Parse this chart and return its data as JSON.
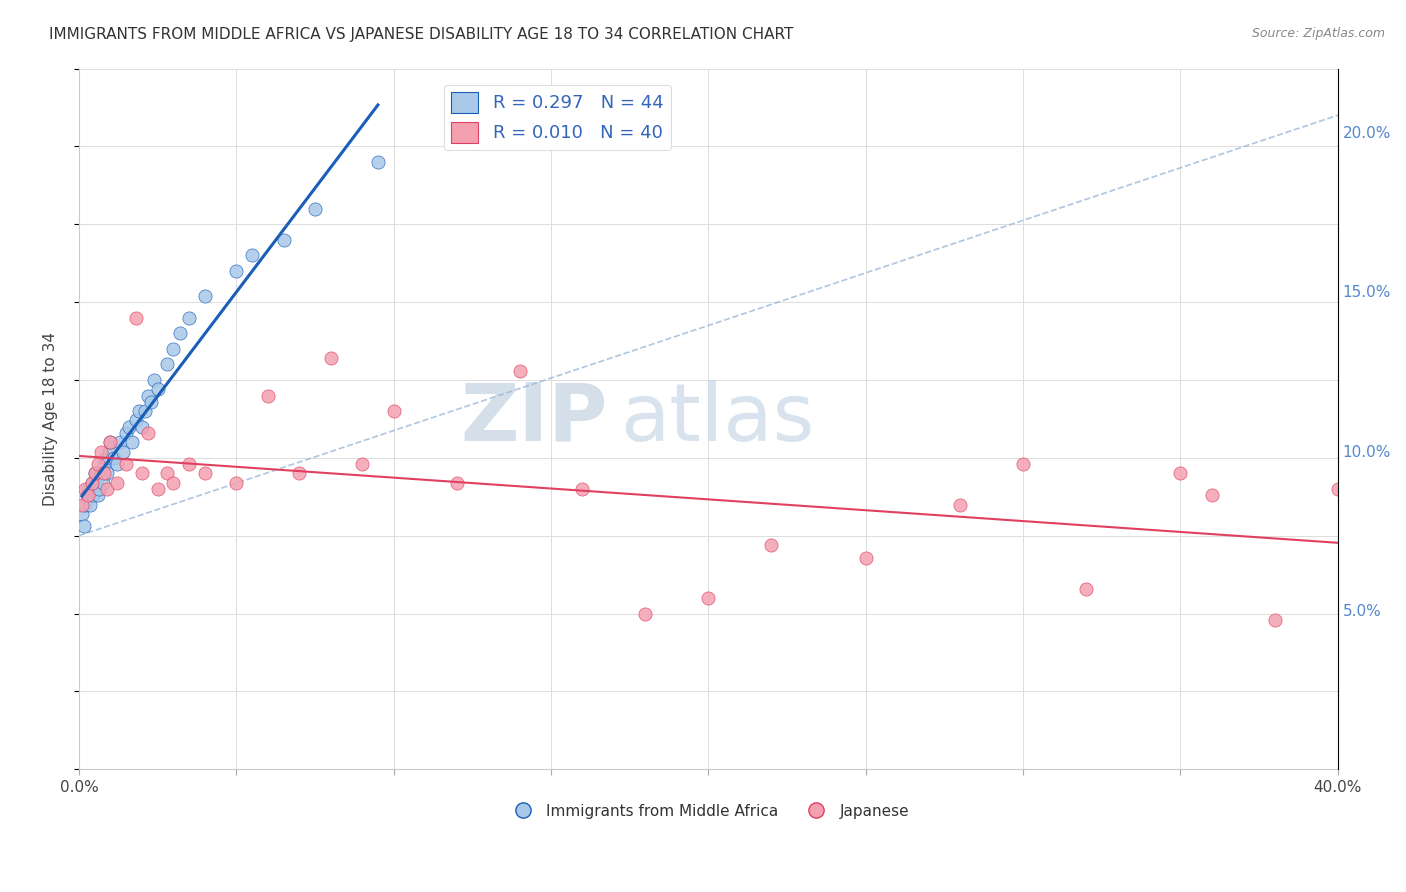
{
  "title": "IMMIGRANTS FROM MIDDLE AFRICA VS JAPANESE DISABILITY AGE 18 TO 34 CORRELATION CHART",
  "source": "Source: ZipAtlas.com",
  "ylabel": "Disability Age 18 to 34",
  "legend_label1": "Immigrants from Middle Africa",
  "legend_label2": "Japanese",
  "r1": 0.297,
  "n1": 44,
  "r2": 0.01,
  "n2": 40,
  "blue_color": "#a8c8e8",
  "pink_color": "#f4a0b0",
  "trend_blue": "#1a5eb8",
  "trend_pink": "#e04060",
  "trend_gray": "#9ab8d8",
  "watermark_zip": "ZIP",
  "watermark_atlas": "atlas",
  "blue_x": [
    0.1,
    0.15,
    0.2,
    0.25,
    0.3,
    0.35,
    0.4,
    0.45,
    0.5,
    0.55,
    0.6,
    0.65,
    0.7,
    0.75,
    0.8,
    0.85,
    0.9,
    0.95,
    1.0,
    1.1,
    1.2,
    1.3,
    1.4,
    1.5,
    1.6,
    1.7,
    1.8,
    1.9,
    2.0,
    2.1,
    2.2,
    2.3,
    2.4,
    2.5,
    2.8,
    3.0,
    3.2,
    3.5,
    4.0,
    5.0,
    5.5,
    6.5,
    7.5,
    9.5
  ],
  "blue_y": [
    8.2,
    7.8,
    8.5,
    8.8,
    9.0,
    8.5,
    9.2,
    8.8,
    9.5,
    9.2,
    8.8,
    9.0,
    9.5,
    9.2,
    9.8,
    10.0,
    9.5,
    10.2,
    10.5,
    10.0,
    9.8,
    10.5,
    10.2,
    10.8,
    11.0,
    10.5,
    11.2,
    11.5,
    11.0,
    11.5,
    12.0,
    11.8,
    12.5,
    12.2,
    13.0,
    13.5,
    14.0,
    14.5,
    15.2,
    16.0,
    16.5,
    17.0,
    18.0,
    19.5
  ],
  "pink_x": [
    0.1,
    0.2,
    0.3,
    0.4,
    0.5,
    0.6,
    0.7,
    0.8,
    0.9,
    1.0,
    1.2,
    1.5,
    1.8,
    2.0,
    2.2,
    2.5,
    2.8,
    3.0,
    3.5,
    4.0,
    5.0,
    6.0,
    7.0,
    8.0,
    9.0,
    10.0,
    12.0,
    14.0,
    16.0,
    18.0,
    20.0,
    22.0,
    25.0,
    28.0,
    30.0,
    32.0,
    35.0,
    36.0,
    38.0,
    40.0
  ],
  "pink_y": [
    8.5,
    9.0,
    8.8,
    9.2,
    9.5,
    9.8,
    10.2,
    9.5,
    9.0,
    10.5,
    9.2,
    9.8,
    14.5,
    9.5,
    10.8,
    9.0,
    9.5,
    9.2,
    9.8,
    9.5,
    9.2,
    12.0,
    9.5,
    13.2,
    9.8,
    11.5,
    9.2,
    12.8,
    9.0,
    5.0,
    5.5,
    7.2,
    6.8,
    8.5,
    9.8,
    5.8,
    9.5,
    8.8,
    4.8,
    9.0
  ],
  "xlim": [
    0,
    40
  ],
  "ylim": [
    0,
    22
  ],
  "x_ticks_major": [
    0,
    5,
    10,
    15,
    20,
    25,
    30,
    35,
    40
  ],
  "y_ticks_right": [
    5,
    10,
    15,
    20
  ],
  "gray_line_x": [
    0,
    40
  ],
  "gray_line_y": [
    7.5,
    21.0
  ]
}
